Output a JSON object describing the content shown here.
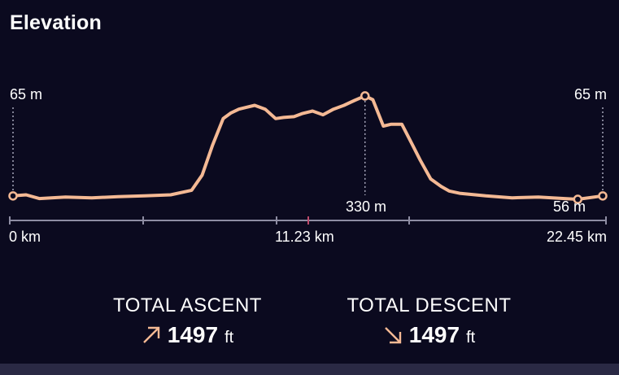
{
  "title": "Elevation",
  "colors": {
    "background": "#0b0a1f",
    "line": "#f4b994",
    "axis": "#8e8da3",
    "accent_tick": "#c04a6c",
    "guide": "#a8a7bb"
  },
  "labels": {
    "start_elev": "65 m",
    "end_elev": "65 m",
    "max_elev": "330 m",
    "min_elev": "56 m",
    "x_start": "0 km",
    "x_mid": "11.23 km",
    "x_end": "22.45 km"
  },
  "stats": {
    "ascent_caption": "TOTAL ASCENT",
    "ascent_value": "1497",
    "ascent_unit": "ft",
    "ascent_icon": "arrow-up-right-icon",
    "descent_caption": "TOTAL DESCENT",
    "descent_value": "1497",
    "descent_unit": "ft",
    "descent_icon": "arrow-down-right-icon"
  },
  "chart_data": {
    "type": "line",
    "xlabel": "",
    "ylabel": "",
    "xlim": [
      0,
      22.45
    ],
    "x": [
      0,
      0.5,
      1,
      2,
      3,
      4,
      5,
      6,
      6.8,
      7.2,
      7.6,
      8.0,
      8.3,
      8.6,
      8.9,
      9.2,
      9.6,
      10.0,
      10.3,
      10.7,
      11.0,
      11.4,
      11.8,
      12.2,
      12.6,
      13.0,
      13.4,
      13.7,
      14.1,
      14.4,
      14.8,
      15.1,
      15.5,
      15.9,
      16.3,
      16.6,
      17,
      18,
      19,
      20,
      21,
      21.5,
      22.45
    ],
    "y": [
      65,
      68,
      58,
      62,
      60,
      63,
      65,
      68,
      80,
      120,
      200,
      270,
      285,
      295,
      300,
      305,
      295,
      270,
      273,
      275,
      283,
      290,
      280,
      295,
      305,
      318,
      330,
      320,
      250,
      255,
      255,
      215,
      160,
      110,
      90,
      78,
      72,
      65,
      60,
      62,
      58,
      56,
      65
    ],
    "ylim": [
      0,
      360
    ]
  }
}
